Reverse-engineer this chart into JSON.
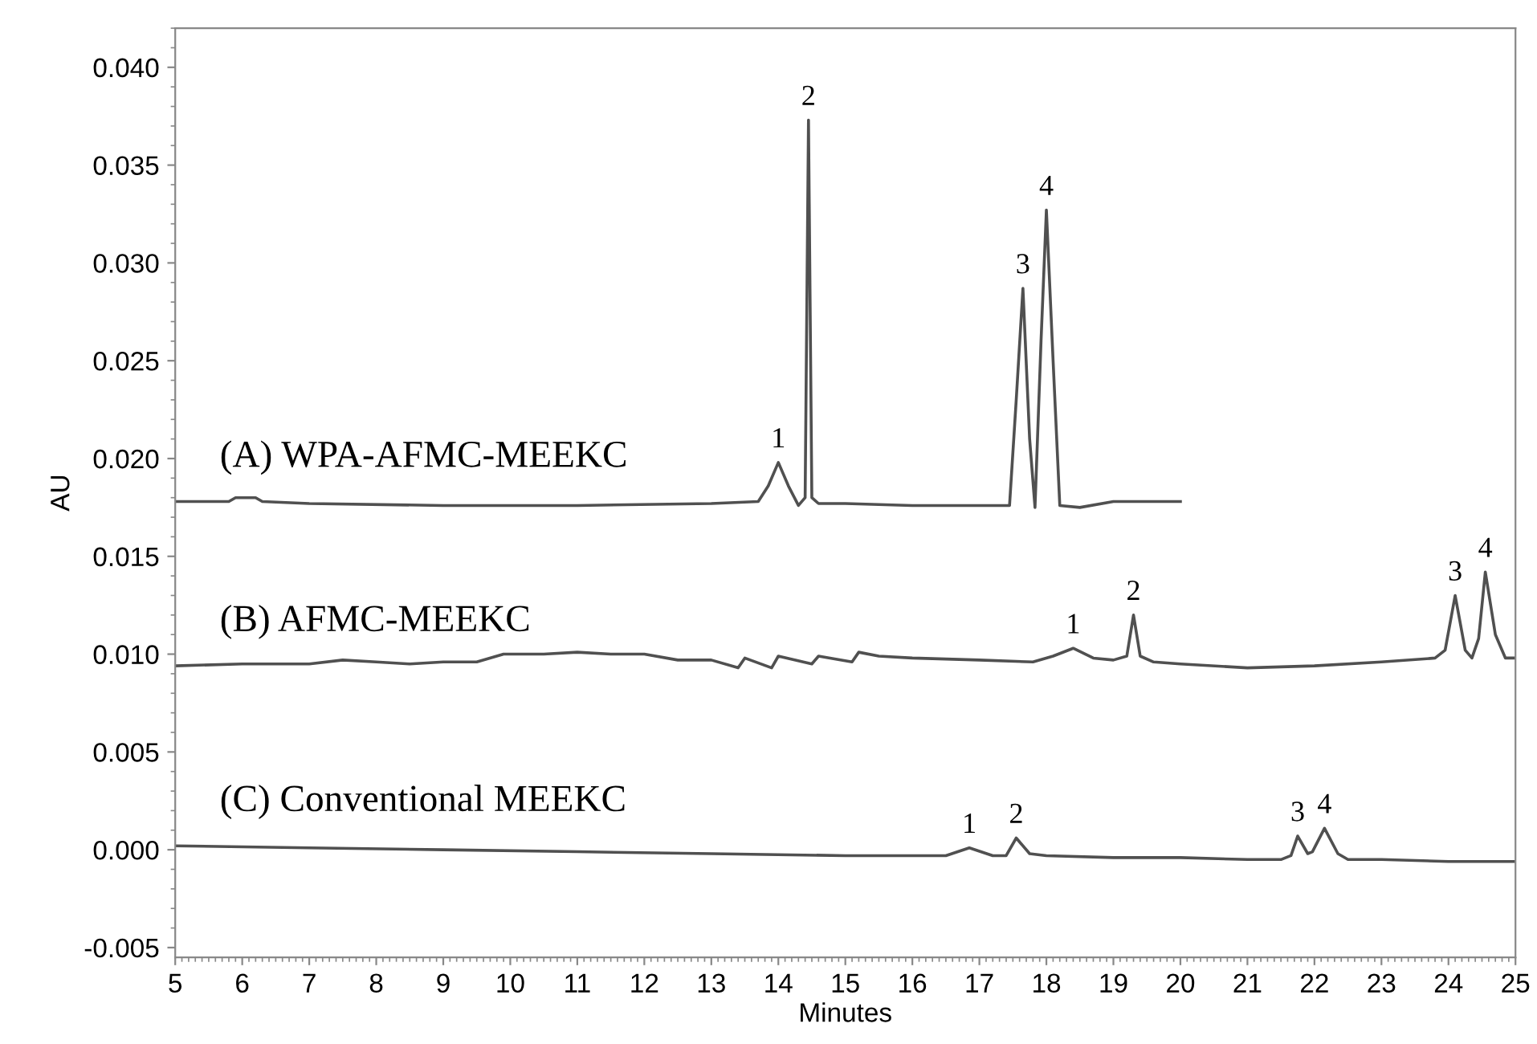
{
  "chart_data": {
    "type": "line",
    "xlabel": "Minutes",
    "ylabel": "AU",
    "xlim": [
      5,
      25
    ],
    "xticks": [
      5,
      6,
      7,
      8,
      9,
      10,
      11,
      12,
      13,
      14,
      15,
      16,
      17,
      18,
      19,
      20,
      21,
      22,
      23,
      24,
      25
    ],
    "ylim": [
      -0.0055,
      0.042
    ],
    "yticks": [
      {
        "value": -0.005,
        "label": "-0.005"
      },
      {
        "value": 0,
        "label": "0.000"
      },
      {
        "value": 0.005,
        "label": "0.005"
      },
      {
        "value": 0.01,
        "label": "0.010"
      },
      {
        "value": 0.015,
        "label": "0.015"
      },
      {
        "value": 0.02,
        "label": "0.020"
      },
      {
        "value": 0.025,
        "label": "0.025"
      },
      {
        "value": 0.03,
        "label": "0.030"
      },
      {
        "value": 0.035,
        "label": "0.035"
      },
      {
        "value": 0.04,
        "label": "0.040"
      }
    ],
    "grid": false,
    "legend": false,
    "marker": "none",
    "line_style": "solid",
    "series": [
      {
        "name": "(A) WPA-AFMC-MEEKC",
        "color": "#505050",
        "x": [
          5,
          5.8,
          5.9,
          6.2,
          6.3,
          7,
          9,
          11,
          13,
          13.7,
          13.85,
          14.0,
          14.15,
          14.3,
          14.4,
          14.45,
          14.5,
          14.6,
          15,
          16,
          17,
          17.45,
          17.55,
          17.65,
          17.75,
          17.83,
          17.92,
          18.0,
          18.1,
          18.2,
          18.5,
          19,
          19.5,
          20
        ],
        "values": [
          0.0178,
          0.0178,
          0.018,
          0.018,
          0.0178,
          0.0177,
          0.0176,
          0.0176,
          0.0177,
          0.0178,
          0.0186,
          0.0198,
          0.0186,
          0.0176,
          0.018,
          0.0373,
          0.018,
          0.0177,
          0.0177,
          0.0176,
          0.0176,
          0.0176,
          0.023,
          0.0287,
          0.021,
          0.0175,
          0.026,
          0.0327,
          0.025,
          0.0176,
          0.0175,
          0.0178,
          0.0178,
          0.0178
        ]
      },
      {
        "name": "(B) AFMC-MEEKC",
        "color": "#505050",
        "x": [
          5,
          6,
          7,
          7.5,
          8,
          8.5,
          9,
          9.5,
          9.9,
          10.5,
          11,
          11.5,
          12,
          12.5,
          13,
          13.4,
          13.5,
          13.9,
          14,
          14.5,
          14.6,
          15.1,
          15.2,
          15.5,
          16,
          17,
          17.8,
          18.1,
          18.4,
          18.7,
          19,
          19.2,
          19.3,
          19.4,
          19.6,
          20,
          21,
          22,
          23,
          23.8,
          23.95,
          24.1,
          24.25,
          24.35,
          24.45,
          24.55,
          24.7,
          24.85,
          25
        ],
        "values": [
          0.0094,
          0.0095,
          0.0095,
          0.0097,
          0.0096,
          0.0095,
          0.0096,
          0.0096,
          0.01,
          0.01,
          0.0101,
          0.01,
          0.01,
          0.0097,
          0.0097,
          0.0093,
          0.0098,
          0.0093,
          0.0099,
          0.0095,
          0.0099,
          0.0096,
          0.0101,
          0.0099,
          0.0098,
          0.0097,
          0.0096,
          0.0099,
          0.0103,
          0.0098,
          0.0097,
          0.0099,
          0.012,
          0.0099,
          0.0096,
          0.0095,
          0.0093,
          0.0094,
          0.0096,
          0.0098,
          0.0102,
          0.013,
          0.0102,
          0.0098,
          0.0108,
          0.0142,
          0.011,
          0.0098,
          0.0098
        ]
      },
      {
        "name": "(C) Conventional MEEKC",
        "color": "#505050",
        "x": [
          5,
          7,
          9,
          11,
          13,
          15,
          16.5,
          16.85,
          17.2,
          17.4,
          17.55,
          17.75,
          18,
          19,
          20,
          21,
          21.5,
          21.65,
          21.75,
          21.9,
          21.97,
          22.15,
          22.35,
          22.5,
          23,
          24,
          25
        ],
        "values": [
          0.0002,
          0.0001,
          0.0,
          -0.0001,
          -0.0002,
          -0.0003,
          -0.0003,
          0.0001,
          -0.0003,
          -0.0003,
          0.0006,
          -0.0002,
          -0.0003,
          -0.0004,
          -0.0004,
          -0.0005,
          -0.0005,
          -0.0003,
          0.0007,
          -0.0002,
          -0.0001,
          0.0011,
          -0.0002,
          -0.0005,
          -0.0005,
          -0.0006,
          -0.0006
        ]
      }
    ],
    "annotations": [
      {
        "text": "1",
        "x": 14.0,
        "y": 0.0198
      },
      {
        "text": "2",
        "x": 14.45,
        "y": 0.0373
      },
      {
        "text": "3",
        "x": 17.65,
        "y": 0.0287
      },
      {
        "text": "4",
        "x": 18.0,
        "y": 0.0327
      },
      {
        "text": "1",
        "x": 18.4,
        "y": 0.0103
      },
      {
        "text": "2",
        "x": 19.3,
        "y": 0.012
      },
      {
        "text": "3",
        "x": 24.1,
        "y": 0.013
      },
      {
        "text": "4",
        "x": 24.55,
        "y": 0.0142
      },
      {
        "text": "1",
        "x": 16.85,
        "y": 0.0001
      },
      {
        "text": "2",
        "x": 17.55,
        "y": 0.0006
      },
      {
        "text": "3",
        "x": 21.75,
        "y": 0.0007
      },
      {
        "text": "4",
        "x": 22.15,
        "y": 0.0011
      }
    ]
  }
}
